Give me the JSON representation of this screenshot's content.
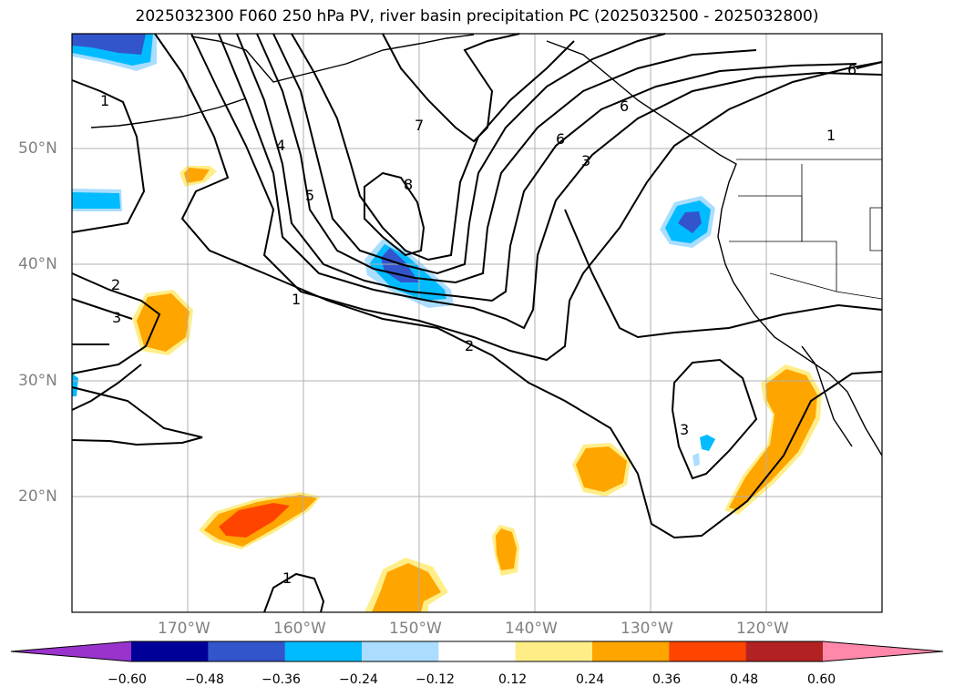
{
  "title": "2025032300 F060 250 hPa PV, river basin precipitation PC (2025032500 - 2025032800)",
  "lat_labels": [
    "50°N",
    "40°N",
    "30°N",
    "20°N"
  ],
  "lon_labels": [
    "170°W",
    "160°W",
    "150°W",
    "140°W",
    "130°W",
    "120°W"
  ],
  "contour_labels": [
    "1",
    "1",
    "1",
    "2",
    "2",
    "3",
    "3",
    "3",
    "4",
    "5",
    "6",
    "6",
    "7",
    "8",
    "6",
    "1"
  ],
  "colorbar": {
    "ticks": [
      "−0.60",
      "−0.48",
      "−0.36",
      "−0.24",
      "−0.12",
      "0.12",
      "0.24",
      "0.36",
      "0.48",
      "0.60"
    ],
    "colors": [
      "#9933cc",
      "#000099",
      "#3355cc",
      "#00bbff",
      "#aaddff",
      "#ffffff",
      "#ffee88",
      "#ffa500",
      "#ff4400",
      "#b22222",
      "#ff88aa"
    ]
  },
  "colors": {
    "blue_strong": "#3355cc",
    "blue_mid": "#00bbff",
    "blue_light": "#aaddff",
    "orange": "#ffa500",
    "yellow": "#ffee88",
    "red_orange": "#ff4400",
    "grid": "#b0b0b0"
  }
}
